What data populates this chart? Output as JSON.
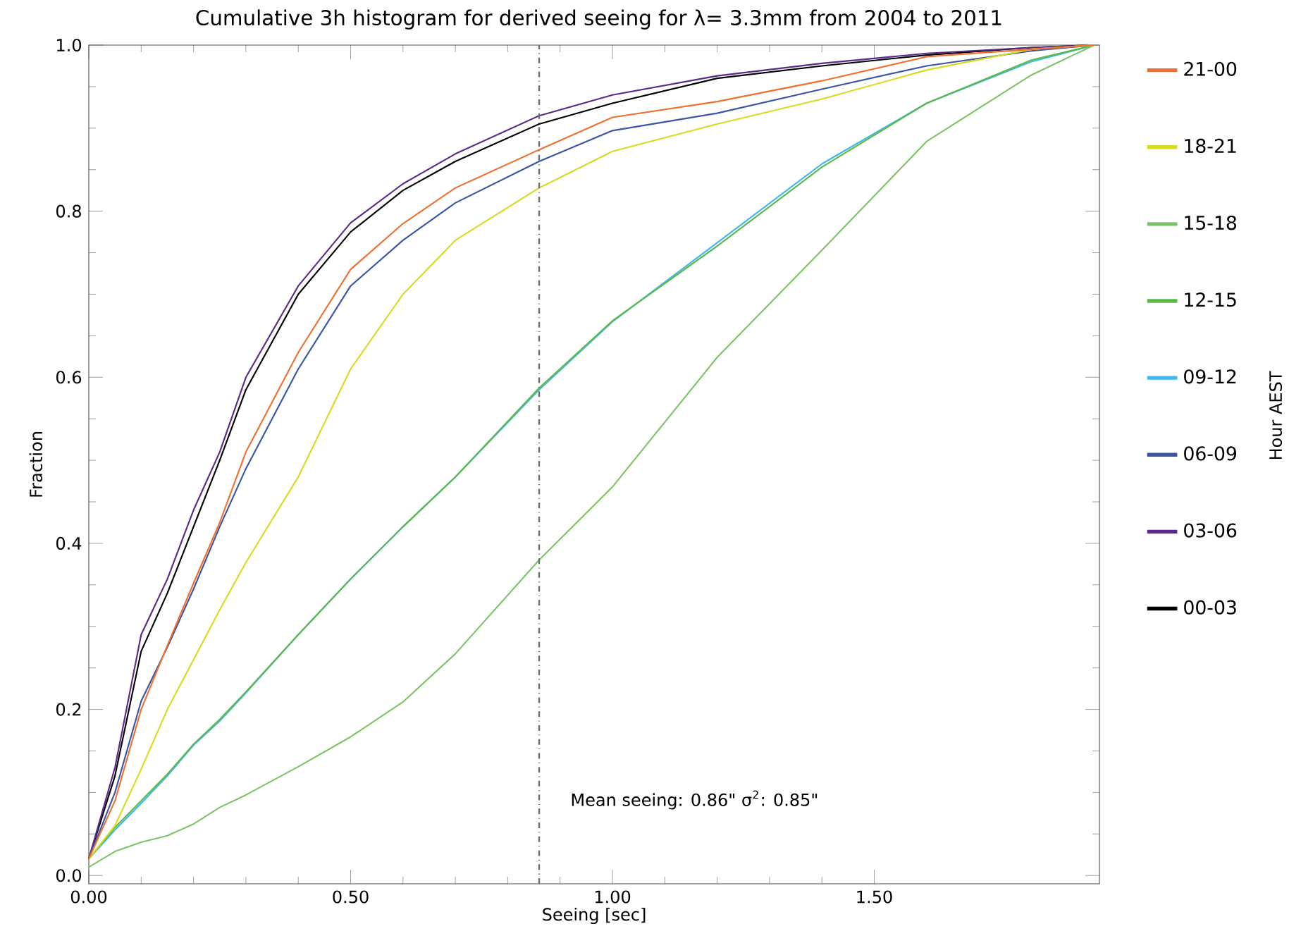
{
  "chart_data": {
    "type": "line",
    "title": "Cumulative 3h histogram for derived seeing for λ= 3.3mm from 2004 to 2011",
    "xlabel": "Seeing [sec]",
    "ylabel": "Fraction",
    "legend_title": "Hour AEST",
    "legend": "right",
    "grid": false,
    "marker": "none",
    "line_style": "solid",
    "xlim": [
      0,
      1.93
    ],
    "ylim": [
      -0.01,
      1.0
    ],
    "xticks": [
      {
        "value": 0,
        "label": "0.00"
      },
      {
        "value": 0.5,
        "label": "0.50"
      },
      {
        "value": 1.0,
        "label": "1.00"
      },
      {
        "value": 1.5,
        "label": "1.50"
      }
    ],
    "yticks": [
      {
        "value": 0,
        "label": "0.0"
      },
      {
        "value": 0.2,
        "label": "0.2"
      },
      {
        "value": 0.4,
        "label": "0.4"
      },
      {
        "value": 0.6,
        "label": "0.6"
      },
      {
        "value": 0.8,
        "label": "0.8"
      },
      {
        "value": 1.0,
        "label": "1.0"
      }
    ],
    "x": [
      0,
      0.05,
      0.1,
      0.15,
      0.2,
      0.25,
      0.3,
      0.4,
      0.5,
      0.6,
      0.7,
      0.86,
      1.0,
      1.2,
      1.4,
      1.6,
      1.8,
      1.92
    ],
    "series": [
      {
        "name": "00-03",
        "color": "#000000",
        "values": [
          0.02,
          0.12,
          0.27,
          0.34,
          0.42,
          0.5,
          0.585,
          0.7,
          0.775,
          0.825,
          0.86,
          0.905,
          0.93,
          0.96,
          0.975,
          0.988,
          0.997,
          1.0
        ]
      },
      {
        "name": "03-06",
        "color": "#5a2a8a",
        "values": [
          0.02,
          0.13,
          0.29,
          0.357,
          0.44,
          0.51,
          0.6,
          0.71,
          0.786,
          0.833,
          0.869,
          0.915,
          0.94,
          0.963,
          0.978,
          0.99,
          0.997,
          1.0
        ]
      },
      {
        "name": "06-09",
        "color": "#3a55a8",
        "values": [
          0.02,
          0.1,
          0.21,
          0.275,
          0.345,
          0.42,
          0.49,
          0.61,
          0.71,
          0.765,
          0.81,
          0.86,
          0.897,
          0.918,
          0.947,
          0.975,
          0.993,
          1.0
        ]
      },
      {
        "name": "09-12",
        "color": "#40b8e8",
        "values": [
          0.02,
          0.055,
          0.087,
          0.12,
          0.157,
          0.186,
          0.22,
          0.29,
          0.357,
          0.42,
          0.48,
          0.585,
          0.667,
          0.762,
          0.857,
          0.93,
          0.98,
          1.0
        ]
      },
      {
        "name": "12-15",
        "color": "#5db84a",
        "values": [
          0.02,
          0.058,
          0.09,
          0.122,
          0.158,
          0.188,
          0.221,
          0.29,
          0.357,
          0.42,
          0.48,
          0.587,
          0.668,
          0.758,
          0.853,
          0.93,
          0.982,
          1.0
        ]
      },
      {
        "name": "15-18",
        "color": "#7cc566",
        "values": [
          0.01,
          0.029,
          0.04,
          0.048,
          0.062,
          0.082,
          0.097,
          0.131,
          0.167,
          0.209,
          0.267,
          0.38,
          0.468,
          0.624,
          0.753,
          0.884,
          0.964,
          1.0
        ]
      },
      {
        "name": "18-21",
        "color": "#d8dc20",
        "values": [
          0.02,
          0.06,
          0.128,
          0.2,
          0.26,
          0.32,
          0.377,
          0.48,
          0.61,
          0.7,
          0.765,
          0.828,
          0.872,
          0.905,
          0.935,
          0.97,
          0.995,
          1.0
        ]
      },
      {
        "name": "21-00",
        "color": "#f07030",
        "values": [
          0.02,
          0.09,
          0.2,
          0.277,
          0.352,
          0.425,
          0.51,
          0.63,
          0.73,
          0.785,
          0.828,
          0.874,
          0.913,
          0.932,
          0.957,
          0.986,
          0.995,
          1.0
        ]
      }
    ],
    "ref_lines": [
      {
        "axis": "x",
        "value": 0.86,
        "color": "#707070",
        "line_style": "dashdot"
      }
    ],
    "annotations": [
      "Mean seeing: 0.86\" σ$^{2}$: 0.85\""
    ]
  }
}
